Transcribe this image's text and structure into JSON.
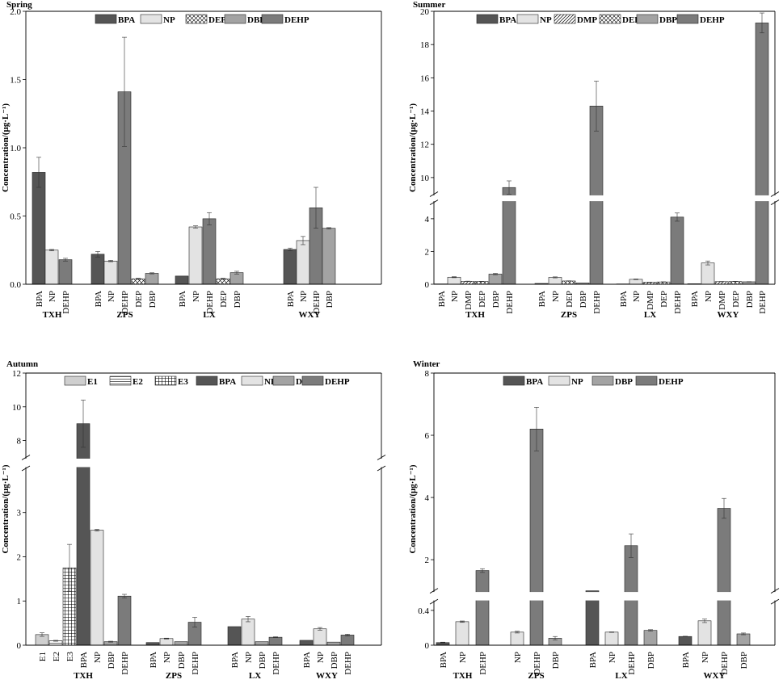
{
  "patterns": {
    "BPA": {
      "fill": "#555555",
      "hatch": "none"
    },
    "NP": {
      "fill": "#e3e3e3",
      "hatch": "none"
    },
    "DMP": {
      "fill": "#ffffff",
      "hatch": "diag"
    },
    "DEP": {
      "fill": "#ffffff",
      "hatch": "cross"
    },
    "DBP": {
      "fill": "#a3a3a3",
      "hatch": "none"
    },
    "DEHP": {
      "fill": "#7b7b7b",
      "hatch": "none"
    },
    "E1": {
      "fill": "#cfcfcf",
      "hatch": "none"
    },
    "E2": {
      "fill": "#ffffff",
      "hatch": "horiz"
    },
    "E3": {
      "fill": "#ffffff",
      "hatch": "grid"
    }
  },
  "chart_data": [
    {
      "type": "bar",
      "title": "Spring",
      "ylabel": "Concentration/(μg·L⁻¹)",
      "ylim": [
        0,
        2.0
      ],
      "legend": [
        "BPA",
        "NP",
        "DEP",
        "DBP",
        "DEHP"
      ],
      "groups": [
        "TXH",
        "ZPS",
        "LX",
        "WXY"
      ],
      "bars": [
        {
          "group": "TXH",
          "label": "BPA",
          "value": 0.82,
          "err": 0.11
        },
        {
          "group": "TXH",
          "label": "NP",
          "value": 0.25,
          "err": 0.005
        },
        {
          "group": "TXH",
          "label": "DEHP",
          "value": 0.18,
          "err": 0.01
        },
        {
          "group": "ZPS",
          "label": "BPA",
          "value": 0.22,
          "err": 0.02
        },
        {
          "group": "ZPS",
          "label": "NP",
          "value": 0.17,
          "err": 0.005
        },
        {
          "group": "ZPS",
          "label": "DEHP",
          "value": 1.41,
          "err": 0.4
        },
        {
          "group": "ZPS",
          "label": "DEP",
          "value": 0.04,
          "err": 0.004
        },
        {
          "group": "ZPS",
          "label": "DBP",
          "value": 0.08,
          "err": 0.004
        },
        {
          "group": "LX",
          "label": "BPA",
          "value": 0.06,
          "err": 0
        },
        {
          "group": "LX",
          "label": "NP",
          "value": 0.42,
          "err": 0.008
        },
        {
          "group": "LX",
          "label": "DEHP",
          "value": 0.48,
          "err": 0.045
        },
        {
          "group": "LX",
          "label": "DEP",
          "value": 0.04,
          "err": 0.004
        },
        {
          "group": "LX",
          "label": "DBP",
          "value": 0.085,
          "err": 0.01
        },
        {
          "group": "WXY",
          "label": "BPA",
          "value": 0.255,
          "err": 0.01
        },
        {
          "group": "WXY",
          "label": "NP",
          "value": 0.32,
          "err": 0.03
        },
        {
          "group": "WXY",
          "label": "DEHP",
          "value": 0.56,
          "err": 0.15
        },
        {
          "group": "WXY",
          "label": "DBP",
          "value": 0.41,
          "err": 0.005
        }
      ]
    },
    {
      "type": "bar",
      "title": "Summer",
      "ylabel": "Concentration/(μg·L⁻¹)",
      "ylim": [
        0,
        20
      ],
      "axis_break": [
        5,
        9
      ],
      "legend": [
        "BPA",
        "NP",
        "DMP",
        "DEP",
        "DBP",
        "DEHP"
      ],
      "groups": [
        "TXH",
        "ZPS",
        "LX",
        "WXY"
      ],
      "bars": [
        {
          "group": "TXH",
          "label": "BPA",
          "value": 0.02,
          "err": 0
        },
        {
          "group": "TXH",
          "label": "NP",
          "value": 0.43,
          "err": 0.03
        },
        {
          "group": "TXH",
          "label": "DMP",
          "value": 0.18,
          "err": 0.01
        },
        {
          "group": "TXH",
          "label": "DEP",
          "value": 0.17,
          "err": 0.01
        },
        {
          "group": "TXH",
          "label": "DBP",
          "value": 0.62,
          "err": 0.04
        },
        {
          "group": "TXH",
          "label": "DEHP",
          "value": 9.4,
          "err": 0.4
        },
        {
          "group": "ZPS",
          "label": "BPA",
          "value": 0.05,
          "err": 0
        },
        {
          "group": "ZPS",
          "label": "NP",
          "value": 0.42,
          "err": 0.03
        },
        {
          "group": "ZPS",
          "label": "DEP",
          "value": 0.2,
          "err": 0.01
        },
        {
          "group": "ZPS",
          "label": "DBP",
          "value": 0.08,
          "err": 0
        },
        {
          "group": "ZPS",
          "label": "DEHP",
          "value": 14.3,
          "err": 1.5
        },
        {
          "group": "LX",
          "label": "BPA",
          "value": 0.02,
          "err": 0
        },
        {
          "group": "LX",
          "label": "NP",
          "value": 0.3,
          "err": 0.02
        },
        {
          "group": "LX",
          "label": "DMP",
          "value": 0.12,
          "err": 0.01
        },
        {
          "group": "LX",
          "label": "DEP",
          "value": 0.14,
          "err": 0.01
        },
        {
          "group": "LX",
          "label": "DEHP",
          "value": 4.1,
          "err": 0.25
        },
        {
          "group": "WXY",
          "label": "BPA",
          "value": 0.03,
          "err": 0
        },
        {
          "group": "WXY",
          "label": "NP",
          "value": 1.3,
          "err": 0.12
        },
        {
          "group": "WXY",
          "label": "DMP",
          "value": 0.16,
          "err": 0.01
        },
        {
          "group": "WXY",
          "label": "DEP",
          "value": 0.17,
          "err": 0.01
        },
        {
          "group": "WXY",
          "label": "DBP",
          "value": 0.15,
          "err": 0.01
        },
        {
          "group": "WXY",
          "label": "DEHP",
          "value": 19.3,
          "err": 0.6
        }
      ]
    },
    {
      "type": "bar",
      "title": "Autumn",
      "ylabel": "Concentration/(μg·L⁻¹)",
      "ylim": [
        0,
        12
      ],
      "axis_break": [
        4,
        7
      ],
      "legend": [
        "E1",
        "E2",
        "E3",
        "BPA",
        "NP",
        "DBP",
        "DEHP"
      ],
      "groups": [
        "TXH",
        "ZPS",
        "LX",
        "WXY"
      ],
      "bars": [
        {
          "group": "TXH",
          "label": "E1",
          "value": 0.24,
          "err": 0.04
        },
        {
          "group": "TXH",
          "label": "E2",
          "value": 0.1,
          "err": 0.01
        },
        {
          "group": "TXH",
          "label": "E3",
          "value": 1.75,
          "err": 0.53
        },
        {
          "group": "TXH",
          "label": "BPA",
          "value": 9.0,
          "err": 1.4
        },
        {
          "group": "TXH",
          "label": "NP",
          "value": 2.6,
          "err": 0.02
        },
        {
          "group": "TXH",
          "label": "DBP",
          "value": 0.08,
          "err": 0.01
        },
        {
          "group": "TXH",
          "label": "DEHP",
          "value": 1.11,
          "err": 0.04
        },
        {
          "group": "ZPS",
          "label": "BPA",
          "value": 0.06,
          "err": 0
        },
        {
          "group": "ZPS",
          "label": "NP",
          "value": 0.15,
          "err": 0.01
        },
        {
          "group": "ZPS",
          "label": "DBP",
          "value": 0.08,
          "err": 0
        },
        {
          "group": "ZPS",
          "label": "DEHP",
          "value": 0.52,
          "err": 0.11
        },
        {
          "group": "LX",
          "label": "BPA",
          "value": 0.42,
          "err": 0
        },
        {
          "group": "LX",
          "label": "NP",
          "value": 0.59,
          "err": 0.06
        },
        {
          "group": "LX",
          "label": "DBP",
          "value": 0.08,
          "err": 0
        },
        {
          "group": "LX",
          "label": "DEHP",
          "value": 0.18,
          "err": 0.01
        },
        {
          "group": "WXY",
          "label": "BPA",
          "value": 0.11,
          "err": 0
        },
        {
          "group": "WXY",
          "label": "NP",
          "value": 0.37,
          "err": 0.03
        },
        {
          "group": "WXY",
          "label": "DBP",
          "value": 0.07,
          "err": 0
        },
        {
          "group": "WXY",
          "label": "DEHP",
          "value": 0.23,
          "err": 0.02
        }
      ]
    },
    {
      "type": "bar",
      "title": "Winter",
      "ylabel": "Concentration/(μg·L⁻¹)",
      "ylim": [
        0,
        8
      ],
      "axis_break": [
        0.5,
        1
      ],
      "legend": [
        "BPA",
        "NP",
        "DBP",
        "DEHP"
      ],
      "groups": [
        "TXH",
        "ZPS",
        "LX",
        "WXY"
      ],
      "bars": [
        {
          "group": "TXH",
          "label": "BPA",
          "value": 0.03,
          "err": 0.005
        },
        {
          "group": "TXH",
          "label": "NP",
          "value": 0.27,
          "err": 0.008
        },
        {
          "group": "TXH",
          "label": "DEHP",
          "value": 1.65,
          "err": 0.06
        },
        {
          "group": "ZPS",
          "label": "NP",
          "value": 0.15,
          "err": 0.01
        },
        {
          "group": "ZPS",
          "label": "DEHP",
          "value": 6.2,
          "err": 0.7
        },
        {
          "group": "ZPS",
          "label": "DBP",
          "value": 0.08,
          "err": 0.02
        },
        {
          "group": "LX",
          "label": "BPA",
          "value": 0.95,
          "err": 0
        },
        {
          "group": "LX",
          "label": "NP",
          "value": 0.15,
          "err": 0.003
        },
        {
          "group": "LX",
          "label": "DEHP",
          "value": 2.45,
          "err": 0.38
        },
        {
          "group": "LX",
          "label": "DBP",
          "value": 0.17,
          "err": 0.008
        },
        {
          "group": "WXY",
          "label": "BPA",
          "value": 0.1,
          "err": 0.003
        },
        {
          "group": "WXY",
          "label": "NP",
          "value": 0.28,
          "err": 0.02
        },
        {
          "group": "WXY",
          "label": "DEHP",
          "value": 3.65,
          "err": 0.32
        },
        {
          "group": "WXY",
          "label": "DBP",
          "value": 0.13,
          "err": 0.01
        }
      ]
    }
  ]
}
